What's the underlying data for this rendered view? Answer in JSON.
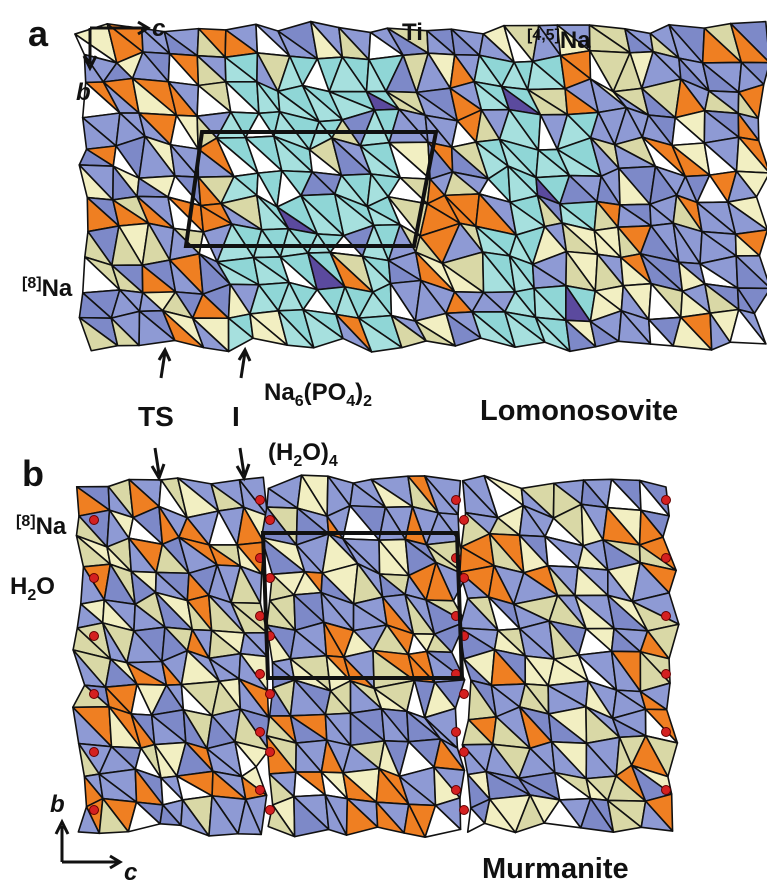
{
  "panel_a": {
    "label": "a",
    "axis_c": "c",
    "axis_b": "b",
    "ti_label": "Ti",
    "na45_label": {
      "sup": "[4,5]",
      "text": "Na"
    },
    "na8_label": {
      "sup": "[8]",
      "text": "Na"
    },
    "ts_label": "TS",
    "i_label": "I",
    "formula_1": {
      "parts": [
        "Na",
        "6",
        "(PO",
        "4",
        ")",
        "2"
      ]
    },
    "formula_2": {
      "parts": [
        "(H",
        "2",
        "O)",
        "4"
      ]
    },
    "mineral": "Lomonosovite"
  },
  "panel_b": {
    "label": "b",
    "na8_label": {
      "sup": "[8]",
      "text": "Na"
    },
    "water_label": {
      "parts": [
        "H",
        "2",
        "O"
      ]
    },
    "axis_b": "b",
    "axis_c": "c",
    "mineral": "Murmanite"
  }
}
